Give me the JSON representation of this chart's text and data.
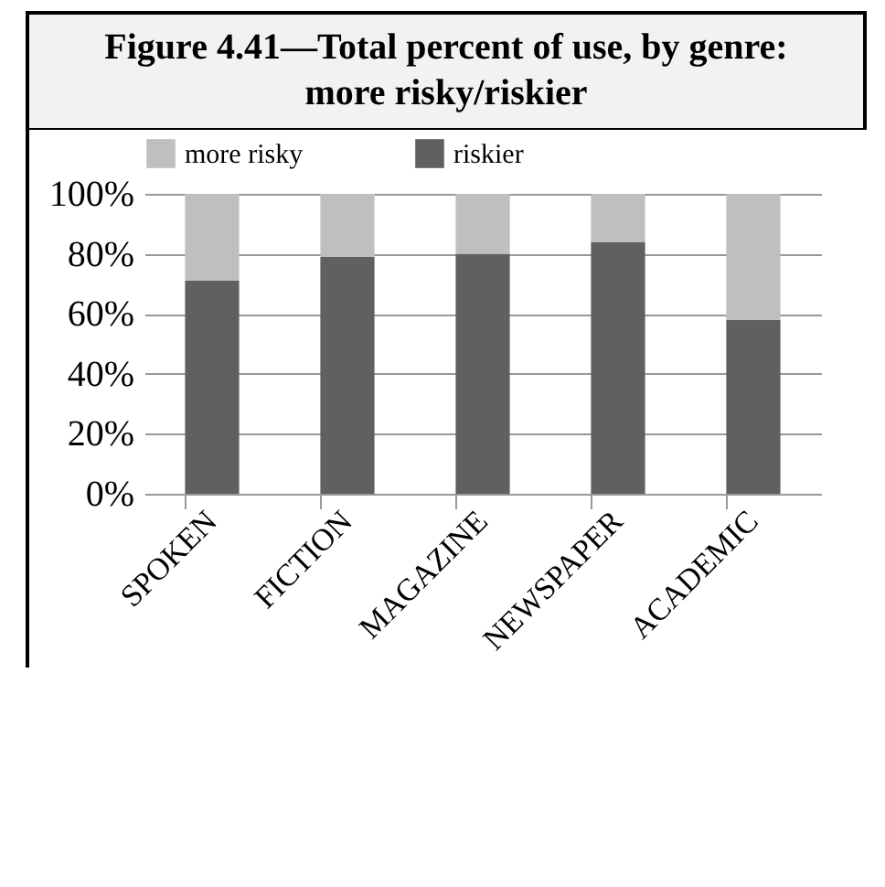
{
  "chart_data": {
    "type": "bar",
    "title": "Figure 4.41—Total percent of use, by genre: more risky/riskier",
    "categories": [
      "SPOKEN",
      "FICTION",
      "MAGAZINE",
      "NEWSPAPER",
      "ACADEMIC"
    ],
    "series": [
      {
        "name": "riskier",
        "color": "#606060",
        "values": [
          71,
          79,
          80,
          84,
          58
        ]
      },
      {
        "name": "more risky",
        "color": "#bfbfbf",
        "values": [
          29,
          21,
          20,
          16,
          42
        ]
      }
    ],
    "stacked": true,
    "ylim": [
      0,
      100
    ],
    "yticks": [
      {
        "value": 0,
        "label": "0%"
      },
      {
        "value": 20,
        "label": "20%"
      },
      {
        "value": 40,
        "label": "40%"
      },
      {
        "value": 60,
        "label": "60%"
      },
      {
        "value": 80,
        "label": "80%"
      },
      {
        "value": 100,
        "label": "100%"
      }
    ],
    "grid": "y",
    "legend": "top"
  }
}
